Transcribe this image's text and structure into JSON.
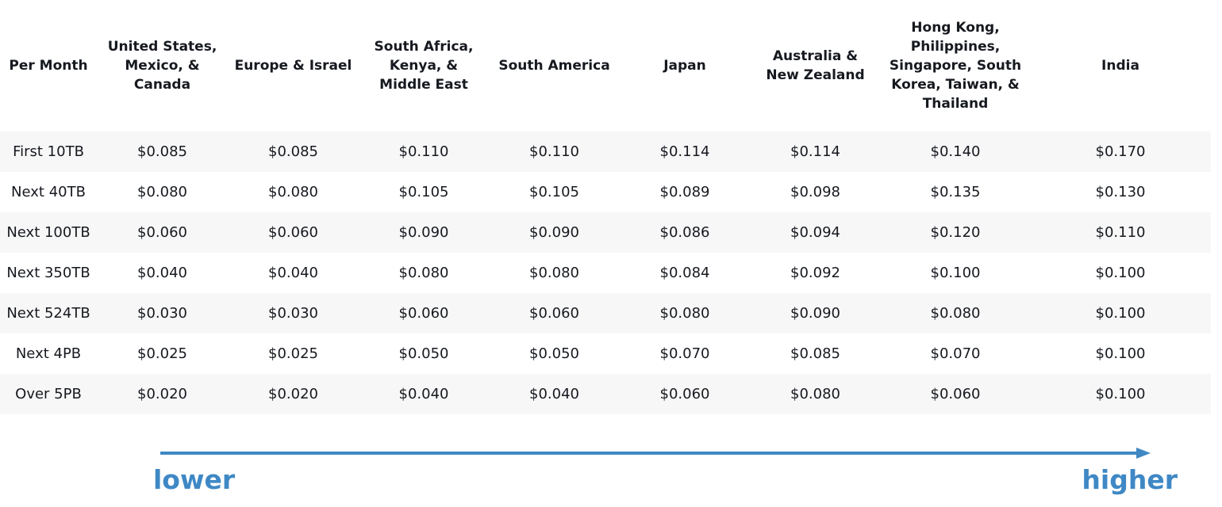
{
  "table": {
    "headers": [
      "Per Month",
      "United States, Mexico, & Canada",
      "Europe & Israel",
      "South Africa, Kenya, & Middle East",
      "South America",
      "Japan",
      "Australia & New Zealand",
      "Hong Kong, Philippines, Singapore, South Korea, Taiwan, & Thailand",
      "India"
    ],
    "rows": [
      [
        "First 10TB",
        "$0.085",
        "$0.085",
        "$0.110",
        "$0.110",
        "$0.114",
        "$0.114",
        "$0.140",
        "$0.170"
      ],
      [
        "Next 40TB",
        "$0.080",
        "$0.080",
        "$0.105",
        "$0.105",
        "$0.089",
        "$0.098",
        "$0.135",
        "$0.130"
      ],
      [
        "Next 100TB",
        "$0.060",
        "$0.060",
        "$0.090",
        "$0.090",
        "$0.086",
        "$0.094",
        "$0.120",
        "$0.110"
      ],
      [
        "Next 350TB",
        "$0.040",
        "$0.040",
        "$0.080",
        "$0.080",
        "$0.084",
        "$0.092",
        "$0.100",
        "$0.100"
      ],
      [
        "Next 524TB",
        "$0.030",
        "$0.030",
        "$0.060",
        "$0.060",
        "$0.080",
        "$0.090",
        "$0.080",
        "$0.100"
      ],
      [
        "Next 4PB",
        "$0.025",
        "$0.025",
        "$0.050",
        "$0.050",
        "$0.070",
        "$0.085",
        "$0.070",
        "$0.100"
      ],
      [
        "Over 5PB",
        "$0.020",
        "$0.020",
        "$0.040",
        "$0.040",
        "$0.060",
        "$0.080",
        "$0.060",
        "$0.100"
      ]
    ]
  },
  "scale": {
    "low_label": "lower",
    "high_label": "higher",
    "color": "#3f88c5"
  },
  "icons": {
    "scale_arrow": "right-arrow-icon"
  }
}
